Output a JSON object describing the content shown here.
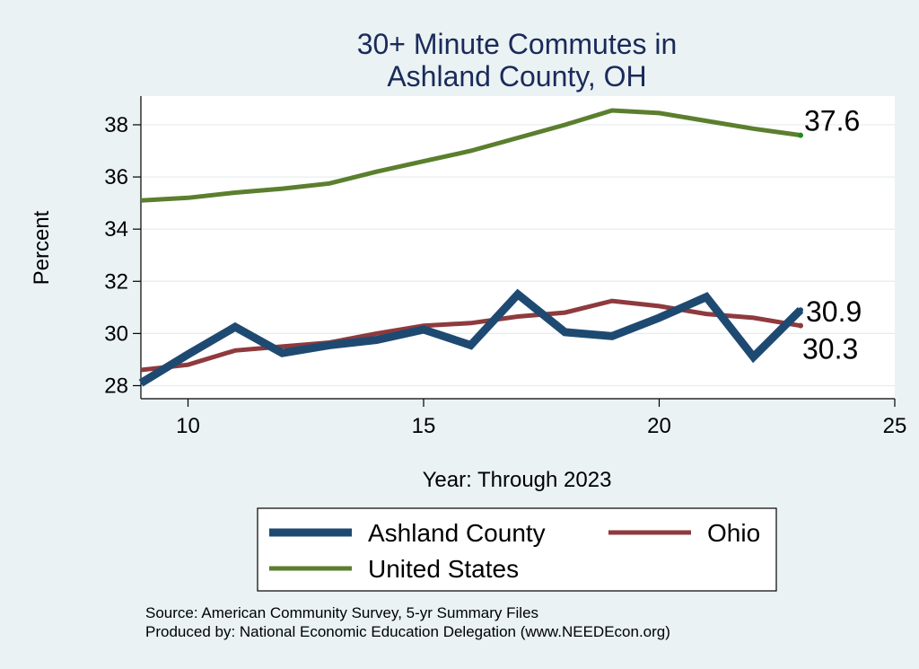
{
  "chart_data": {
    "type": "line",
    "title": [
      "30+ Minute Commutes in",
      "Ashland County, OH"
    ],
    "xlabel": "Year: Through 2023",
    "ylabel": "Percent",
    "xlim": [
      9,
      25
    ],
    "ylim": [
      27.5,
      39.1
    ],
    "xticks": [
      10,
      15,
      20,
      25
    ],
    "yticks": [
      28,
      30,
      32,
      34,
      36,
      38
    ],
    "grid": true,
    "x": [
      9,
      10,
      11,
      12,
      13,
      14,
      15,
      16,
      17,
      18,
      19,
      20,
      21,
      22,
      23
    ],
    "series": [
      {
        "name": "Ashland County",
        "color": "#1e4a72",
        "values": [
          28.1,
          29.2,
          30.25,
          29.25,
          29.55,
          29.75,
          30.15,
          29.55,
          31.5,
          30.05,
          29.9,
          30.6,
          31.4,
          29.1,
          30.9
        ],
        "end_label": "30.9"
      },
      {
        "name": "Ohio",
        "color": "#8e3a3e",
        "values": [
          28.6,
          28.8,
          29.35,
          29.5,
          29.65,
          30.0,
          30.3,
          30.4,
          30.65,
          30.8,
          31.25,
          31.05,
          30.75,
          30.6,
          30.3
        ],
        "end_label": "30.3"
      },
      {
        "name": "United States",
        "color": "#5b7f2e",
        "values": [
          35.1,
          35.2,
          35.4,
          35.55,
          35.75,
          36.2,
          36.6,
          37.0,
          37.5,
          38.0,
          38.55,
          38.45,
          38.15,
          37.85,
          37.6
        ],
        "end_label": "37.6"
      }
    ],
    "legend": {
      "placement": "bottom",
      "entries": [
        "Ashland County",
        "Ohio",
        "United States"
      ]
    },
    "notes": [
      "Source: American Community Survey, 5-yr Summary Files",
      "Produced by: National Economic Education Delegation (www.NEEDEcon.org)"
    ]
  }
}
